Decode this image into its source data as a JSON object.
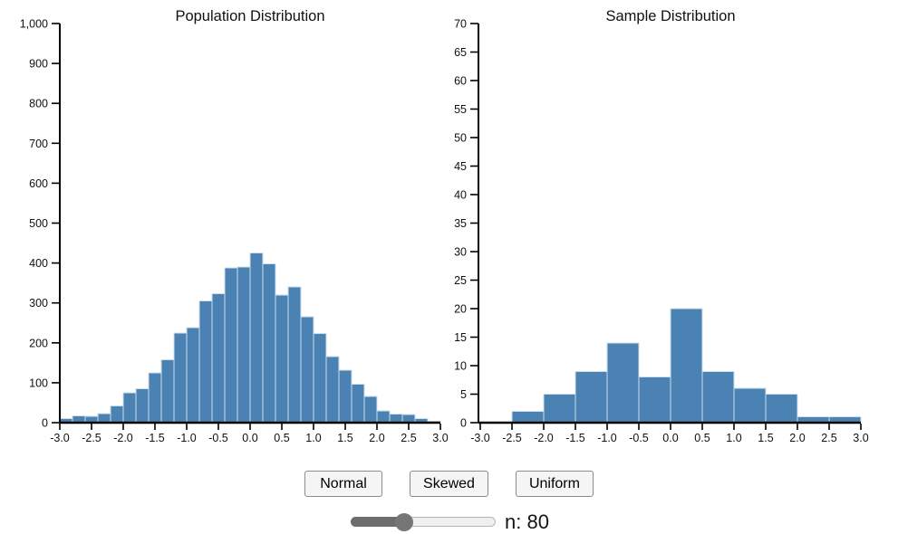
{
  "page": {
    "background": "#ffffff"
  },
  "controls": {
    "buttons": [
      {
        "label": "Normal"
      },
      {
        "label": "Skewed"
      },
      {
        "label": "Uniform"
      }
    ],
    "slider": {
      "label": "n: 80",
      "value": 80,
      "fraction": 0.37
    }
  },
  "chart_data": [
    {
      "type": "bar",
      "subtype": "histogram",
      "title": "Population Distribution",
      "bar_color": "#4a82b4",
      "bar_stroke": "#cfdce9",
      "axis_color": "#000000",
      "xlim": [
        -3.0,
        3.0
      ],
      "ylim": [
        0,
        1000
      ],
      "bin_start": -3.0,
      "bin_width": 0.2,
      "values": [
        10,
        17,
        16,
        23,
        42,
        75,
        85,
        125,
        158,
        225,
        238,
        305,
        323,
        388,
        390,
        425,
        398,
        320,
        340,
        265,
        223,
        165,
        131,
        96,
        66,
        29,
        22,
        20,
        10,
        3
      ],
      "ytick_step": 100,
      "ytick_labels": [
        "0",
        "100",
        "200",
        "300",
        "400",
        "500",
        "600",
        "700",
        "800",
        "900",
        "1,000"
      ],
      "xtick_values": [
        -3,
        -2.5,
        -2,
        -1.5,
        -1,
        -0.5,
        0,
        0.5,
        1,
        1.5,
        2,
        2.5,
        3
      ],
      "xtick_labels": [
        "-3.0",
        "-2.5",
        "-2.0",
        "-1.5",
        "-1.0",
        "-0.5",
        "0.0",
        "0.5",
        "1.0",
        "1.5",
        "2.0",
        "2.5",
        "3.0"
      ],
      "grid": false,
      "legend": false
    },
    {
      "type": "bar",
      "subtype": "histogram",
      "title": "Sample Distribution",
      "bar_color": "#4a82b4",
      "bar_stroke": "#cfdce9",
      "axis_color": "#000000",
      "xlim": [
        -3.0,
        3.0
      ],
      "ylim": [
        0,
        70
      ],
      "bin_start": -3.0,
      "bin_width": 0.5,
      "values": [
        0,
        2,
        5,
        9,
        14,
        8,
        20,
        9,
        6,
        5,
        1,
        1
      ],
      "ytick_step": 5,
      "ytick_labels": [
        "0",
        "5",
        "10",
        "15",
        "20",
        "25",
        "30",
        "35",
        "40",
        "45",
        "50",
        "55",
        "60",
        "65",
        "70"
      ],
      "xtick_values": [
        -3,
        -2.5,
        -2,
        -1.5,
        -1,
        -0.5,
        0,
        0.5,
        1,
        1.5,
        2,
        2.5,
        3
      ],
      "xtick_labels": [
        "-3.0",
        "-2.5",
        "-2.0",
        "-1.5",
        "-1.0",
        "-0.5",
        "0.0",
        "0.5",
        "1.0",
        "1.5",
        "2.0",
        "2.5",
        "3.0"
      ],
      "grid": false,
      "legend": false
    }
  ]
}
